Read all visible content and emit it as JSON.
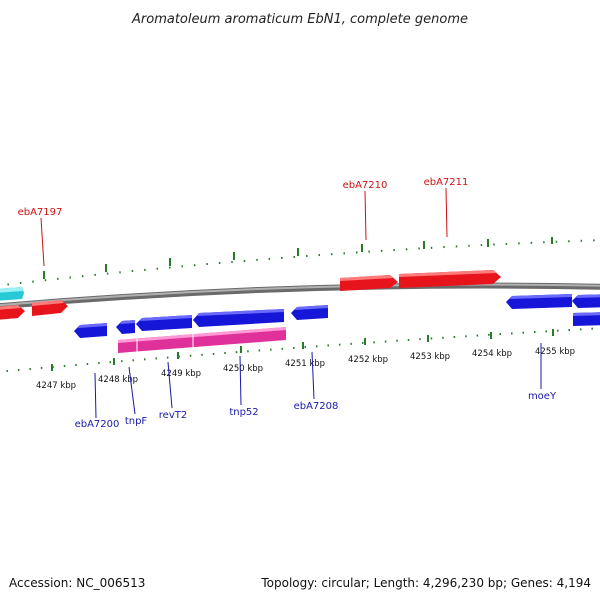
{
  "title": "Aromatoleum aromaticum EbN1, complete genome",
  "footer": {
    "accession": "Accession: NC_006513",
    "summary": "Topology: circular; Length: 4,296,230 bp; Genes: 4,194"
  },
  "scale_labels": [
    "4247 kbp",
    "4248 kbp",
    "4249 kbp",
    "4250 kbp",
    "4251 kbp",
    "4252 kbp",
    "4253 kbp",
    "4254 kbp",
    "4255 kbp"
  ],
  "gene_labels_top": [
    "ebA7197",
    "ebA7210",
    "ebA7211"
  ],
  "gene_labels_bottom": [
    "ebA7200",
    "tnpF",
    "revT2",
    "tnp52",
    "ebA7208",
    "moeY"
  ],
  "colors": {
    "forward_gene": "#e8141c",
    "reverse_gene": "#1616d8",
    "rna": "#e0309a",
    "mobile": "#27c9d6",
    "backbone": "#8a8a8a",
    "tick": "#2a7a2a",
    "label_top": "#cc1111",
    "label_bottom": "#1a1aaa"
  }
}
